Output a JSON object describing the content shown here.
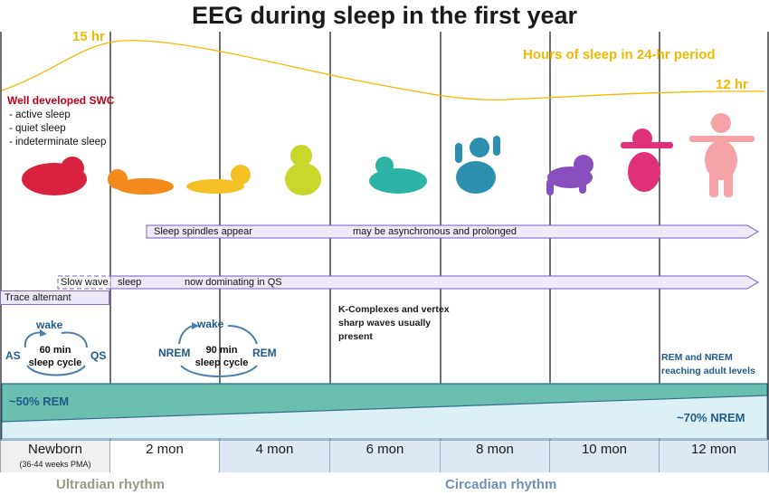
{
  "title": "EEG during sleep in the first year",
  "sleep_hours": {
    "label": "Hours of sleep in 24-hr period",
    "start_label": "15 hr",
    "end_label": "12 hr",
    "color": "#f5b800"
  },
  "swc": {
    "title": "Well developed SWC",
    "items": [
      "- active sleep",
      "- quiet sleep",
      "- indeterminate sleep"
    ]
  },
  "babies": [
    {
      "icon": "baby-newborn-icon",
      "color": "#d8223f"
    },
    {
      "icon": "baby-lying-icon",
      "color": "#f28a1c"
    },
    {
      "icon": "baby-tummy-icon",
      "color": "#f5c026"
    },
    {
      "icon": "baby-sitting-icon",
      "color": "#c9d62b"
    },
    {
      "icon": "baby-rolling-icon",
      "color": "#2bb3a3"
    },
    {
      "icon": "baby-sitting-arms-icon",
      "color": "#2d8fb0"
    },
    {
      "icon": "baby-crawling-icon",
      "color": "#8a4fbf"
    },
    {
      "icon": "baby-kneeling-icon",
      "color": "#e0307a"
    },
    {
      "icon": "baby-standing-icon",
      "color": "#f5a3a8"
    }
  ],
  "bars": {
    "spindles_label": "Sleep spindles appear",
    "spindles_note": "may be asynchronous and prolonged",
    "slowwave_label_a": "Slow wave",
    "slowwave_label_b": "sleep",
    "slowwave_note": "now dominating in QS",
    "trace_alternant": "Trace alternant"
  },
  "cycle_newborn": {
    "wake": "wake",
    "left": "AS",
    "right": "QS",
    "center": "60 min sleep cycle"
  },
  "cycle_2mon": {
    "wake": "wake",
    "left": "NREM",
    "right": "REM",
    "center": "90 min sleep cycle"
  },
  "k_complexes": "K-Complexes and vertex sharp waves usually present",
  "rem_adult": "REM and NREM reaching adult levels",
  "rem_band": {
    "rem_label": "~50% REM",
    "nrem_label": "~70% NREM",
    "rem_color": "#6bbfae",
    "nrem_color": "#dcf0f6"
  },
  "months": [
    {
      "label": "Newborn",
      "sub": "(36-44 weeks PMA)"
    },
    {
      "label": "2 mon",
      "sub": ""
    },
    {
      "label": "4 mon",
      "sub": ""
    },
    {
      "label": "6 mon",
      "sub": ""
    },
    {
      "label": "8 mon",
      "sub": ""
    },
    {
      "label": "10 mon",
      "sub": ""
    },
    {
      "label": "12 mon",
      "sub": ""
    }
  ],
  "rhythms": {
    "ultradian": "Ultradian rhythm",
    "circadian": "Circadian rhythm",
    "ultradian_color": "#9b9a86",
    "circadian_color": "#6f8fb5"
  }
}
